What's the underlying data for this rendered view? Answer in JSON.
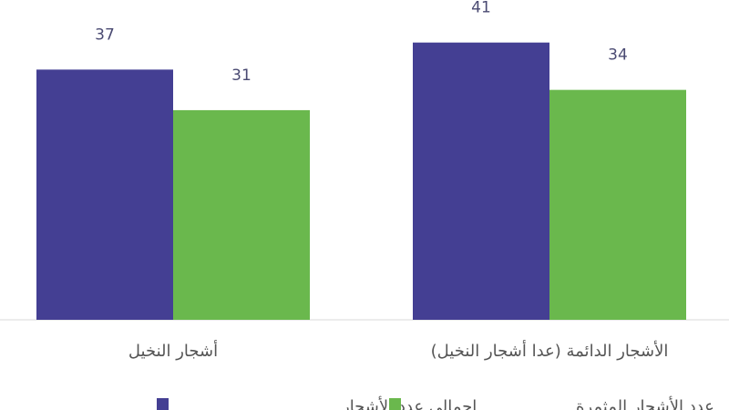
{
  "chart_data": {
    "type": "bar",
    "categories": [
      "الأشجار الدائمة (عدا أشجار النخيل)",
      "أشجار النخيل"
    ],
    "series": [
      {
        "name": "إجمالي عدد الأشجار",
        "color": "#443f93",
        "values": [
          41,
          37
        ]
      },
      {
        "name": "عدد الأشجار المثمرة",
        "color": "#6ab84d",
        "values": [
          34,
          31
        ]
      }
    ],
    "ylim": [
      0,
      45
    ],
    "grid": false,
    "legend_position": "bottom",
    "direction": "rtl"
  }
}
